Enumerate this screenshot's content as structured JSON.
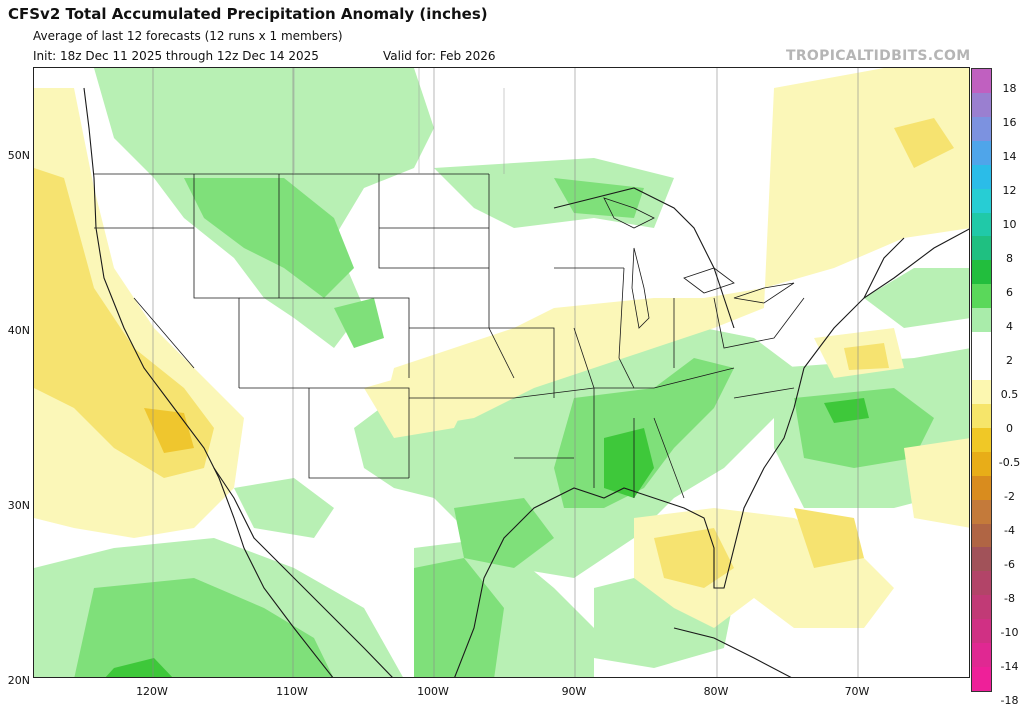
{
  "header": {
    "title": "CFSv2 Total Accumulated Precipitation Anomaly (inches)",
    "subtitle": "Average of last 12 forecasts (12 runs x 1 members)",
    "init": "Init: 18z Dec 11 2025 through 12z Dec 14 2025",
    "valid": "Valid for: Feb 2026",
    "credit": "TROPICALTIDBITS.COM"
  },
  "map": {
    "lat_labels": [
      "50N",
      "40N",
      "30N",
      "20N"
    ],
    "lon_labels": [
      "120W",
      "110W",
      "100W",
      "90W",
      "80W",
      "70W"
    ],
    "colors": {
      "light_green": "#b8f0b4",
      "mid_green": "#7fe07a",
      "green": "#3ec83a",
      "light_yellow": "#fbf7b8",
      "yellow": "#f6e370",
      "gold": "#efc62e",
      "border": "#1a1a1a"
    }
  },
  "colorbar": {
    "labels": [
      "18",
      "16",
      "14",
      "12",
      "10",
      "8",
      "6",
      "4",
      "2",
      "0.5",
      "0",
      "-0.5",
      "-2",
      "-4",
      "-6",
      "-8",
      "-10",
      "-14",
      "-18"
    ],
    "colors": [
      "#c060c0",
      "#9a7fd0",
      "#7c92e0",
      "#4fa5ea",
      "#2bbce8",
      "#27cdd4",
      "#20c9a8",
      "#1fc081",
      "#22be3d",
      "#5ad85a",
      "#a9ecaa",
      "#ffffff",
      "#ffffff",
      "#fcf7b0",
      "#f6e56a",
      "#f0c826",
      "#e8ad18",
      "#d98c1e",
      "#c47a3a",
      "#b06544",
      "#a15259",
      "#b24468",
      "#c13a76",
      "#d03084",
      "#e02892",
      "#ee2099"
    ]
  }
}
